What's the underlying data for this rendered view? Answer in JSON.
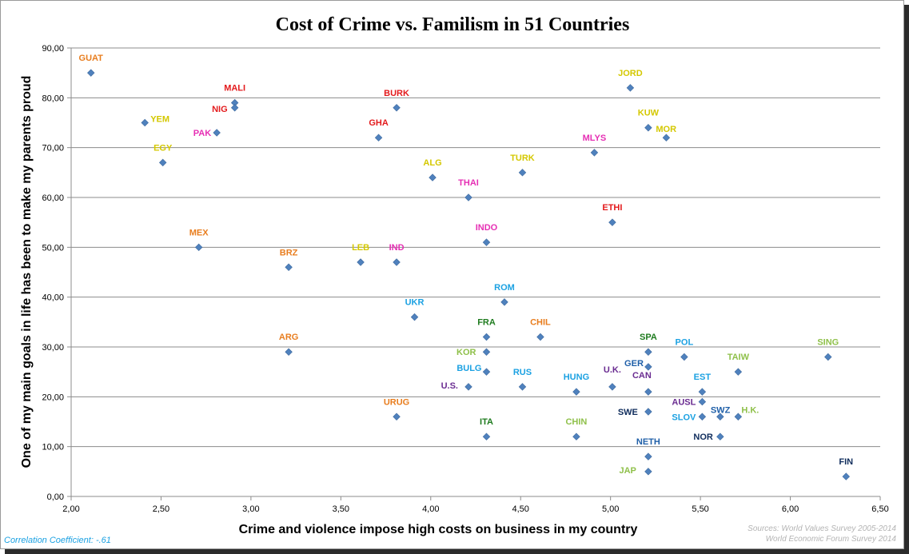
{
  "chart_data": {
    "type": "scatter",
    "title": "Cost of Crime vs. Familism in 51 Countries",
    "xlabel": "Crime and violence impose high costs on business in my country",
    "ylabel": "One of my main goals in life has been to make my parents proud",
    "xlim": [
      2.0,
      6.5
    ],
    "ylim": [
      0,
      90
    ],
    "xticks": [
      "2,00",
      "2,50",
      "3,00",
      "3,50",
      "4,00",
      "4,50",
      "5,00",
      "5,50",
      "6,00",
      "6,50"
    ],
    "yticks": [
      "0,00",
      "10,00",
      "20,00",
      "30,00",
      "40,00",
      "50,00",
      "60,00",
      "70,00",
      "80,00",
      "90,00"
    ],
    "grid": "horizontal",
    "marker_color": "#4f81bd",
    "correlation_note": "Correlation Coefficient: -.61",
    "sources": [
      "Sources: World Values Survey 2005-2014",
      "World Economic Forum Survey 2014"
    ],
    "points": [
      {
        "label": "GUAT",
        "x": 2.11,
        "y": 85,
        "color": "#e87d1e"
      },
      {
        "label": "YEM",
        "x": 2.41,
        "y": 75,
        "color": "#d4c800"
      },
      {
        "label": "EGY",
        "x": 2.51,
        "y": 67,
        "color": "#d4c800"
      },
      {
        "label": "MALI",
        "x": 2.91,
        "y": 79,
        "color": "#e31a1c"
      },
      {
        "label": "NIG",
        "x": 2.91,
        "y": 78,
        "color": "#e31a1c"
      },
      {
        "label": "PAK",
        "x": 2.81,
        "y": 73,
        "color": "#e62fb4"
      },
      {
        "label": "MEX",
        "x": 2.71,
        "y": 50,
        "color": "#e87d1e"
      },
      {
        "label": "BRZ",
        "x": 3.21,
        "y": 46,
        "color": "#e87d1e"
      },
      {
        "label": "ARG",
        "x": 3.21,
        "y": 29,
        "color": "#e87d1e"
      },
      {
        "label": "BURK",
        "x": 3.81,
        "y": 78,
        "color": "#e31a1c"
      },
      {
        "label": "GHA",
        "x": 3.71,
        "y": 72,
        "color": "#e31a1c"
      },
      {
        "label": "LEB",
        "x": 3.61,
        "y": 47,
        "color": "#d4c800"
      },
      {
        "label": "IND",
        "x": 3.81,
        "y": 47,
        "color": "#e62fb4"
      },
      {
        "label": "ALG",
        "x": 4.01,
        "y": 64,
        "color": "#d4c800"
      },
      {
        "label": "THAI",
        "x": 4.21,
        "y": 60,
        "color": "#e62fb4"
      },
      {
        "label": "TURK",
        "x": 4.51,
        "y": 65,
        "color": "#d4c800"
      },
      {
        "label": "INDO",
        "x": 4.31,
        "y": 51,
        "color": "#e62fb4"
      },
      {
        "label": "UKR",
        "x": 3.91,
        "y": 36,
        "color": "#1ba1e2"
      },
      {
        "label": "ROM",
        "x": 4.41,
        "y": 39,
        "color": "#1ba1e2"
      },
      {
        "label": "URUG",
        "x": 3.81,
        "y": 16,
        "color": "#e87d1e"
      },
      {
        "label": "FRA",
        "x": 4.31,
        "y": 32,
        "color": "#1e7b1e"
      },
      {
        "label": "KOR",
        "x": 4.31,
        "y": 29,
        "color": "#8fc04a"
      },
      {
        "label": "BULG",
        "x": 4.31,
        "y": 25,
        "color": "#1ba1e2"
      },
      {
        "label": "U.S.",
        "x": 4.21,
        "y": 22,
        "color": "#6a2c91"
      },
      {
        "label": "RUS",
        "x": 4.51,
        "y": 22,
        "color": "#1ba1e2"
      },
      {
        "label": "CHIL",
        "x": 4.61,
        "y": 32,
        "color": "#e87d1e"
      },
      {
        "label": "ITA",
        "x": 4.31,
        "y": 12,
        "color": "#1e7b1e"
      },
      {
        "label": "HUNG",
        "x": 4.81,
        "y": 21,
        "color": "#1ba1e2"
      },
      {
        "label": "CHIN",
        "x": 4.81,
        "y": 12,
        "color": "#8fc04a"
      },
      {
        "label": "JORD",
        "x": 5.11,
        "y": 82,
        "color": "#d4c800"
      },
      {
        "label": "KUW",
        "x": 5.21,
        "y": 74,
        "color": "#d4c800"
      },
      {
        "label": "MOR",
        "x": 5.31,
        "y": 72,
        "color": "#d4c800"
      },
      {
        "label": "MLYS",
        "x": 4.91,
        "y": 69,
        "color": "#e62fb4"
      },
      {
        "label": "ETHI",
        "x": 5.01,
        "y": 55,
        "color": "#e31a1c"
      },
      {
        "label": "SPA",
        "x": 5.21,
        "y": 29,
        "color": "#1e7b1e"
      },
      {
        "label": "GER",
        "x": 5.21,
        "y": 26,
        "color": "#1f5fa8"
      },
      {
        "label": "POL",
        "x": 5.41,
        "y": 28,
        "color": "#1ba1e2"
      },
      {
        "label": "U.K.",
        "x": 5.01,
        "y": 22,
        "color": "#6a2c91"
      },
      {
        "label": "CAN",
        "x": 5.21,
        "y": 21,
        "color": "#6a2c91"
      },
      {
        "label": "SWE",
        "x": 5.21,
        "y": 17,
        "color": "#0f2c5c"
      },
      {
        "label": "NETH",
        "x": 5.21,
        "y": 8,
        "color": "#1f5fa8"
      },
      {
        "label": "JAP",
        "x": 5.21,
        "y": 5,
        "color": "#8fc04a"
      },
      {
        "label": "EST",
        "x": 5.51,
        "y": 21,
        "color": "#1ba1e2"
      },
      {
        "label": "AUSL",
        "x": 5.51,
        "y": 19,
        "color": "#6a2c91"
      },
      {
        "label": "SLOV",
        "x": 5.51,
        "y": 16,
        "color": "#1ba1e2"
      },
      {
        "label": "SWZ",
        "x": 5.61,
        "y": 16,
        "color": "#1f5fa8"
      },
      {
        "label": "NOR",
        "x": 5.61,
        "y": 12,
        "color": "#0f2c5c"
      },
      {
        "label": "H.K.",
        "x": 5.71,
        "y": 16,
        "color": "#8fc04a"
      },
      {
        "label": "TAIW",
        "x": 5.71,
        "y": 25,
        "color": "#8fc04a"
      },
      {
        "label": "SING",
        "x": 6.21,
        "y": 28,
        "color": "#8fc04a"
      },
      {
        "label": "FIN",
        "x": 6.31,
        "y": 4,
        "color": "#0f2c5c"
      }
    ]
  }
}
